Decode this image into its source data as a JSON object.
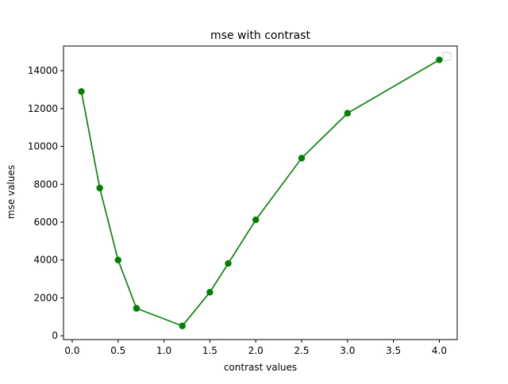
{
  "chart_data": {
    "type": "line",
    "title": "mse with contrast",
    "xlabel": "contrast values",
    "ylabel": "mse values",
    "xlim": [
      -0.095,
      4.195
    ],
    "ylim": [
      -200,
      15300
    ],
    "xticks": [
      0.0,
      0.5,
      1.0,
      1.5,
      2.0,
      2.5,
      3.0,
      3.5,
      4.0
    ],
    "xtick_labels": [
      "0.0",
      "0.5",
      "1.0",
      "1.5",
      "2.0",
      "2.5",
      "3.0",
      "3.5",
      "4.0"
    ],
    "yticks": [
      0,
      2000,
      4000,
      6000,
      8000,
      10000,
      12000,
      14000
    ],
    "ytick_labels": [
      "0",
      "2000",
      "4000",
      "6000",
      "8000",
      "10000",
      "12000",
      "14000"
    ],
    "grid": false,
    "legend": {
      "placement": "upper right",
      "entries": []
    },
    "series": [
      {
        "color": "#008000",
        "marker": "circle",
        "x": [
          0.1,
          0.3,
          0.5,
          0.7,
          1.2,
          1.5,
          1.7,
          2.0,
          2.5,
          3.0,
          4.0
        ],
        "y": [
          12900,
          7800,
          4000,
          1450,
          520,
          2300,
          3820,
          6120,
          9380,
          11750,
          14570
        ]
      }
    ]
  }
}
